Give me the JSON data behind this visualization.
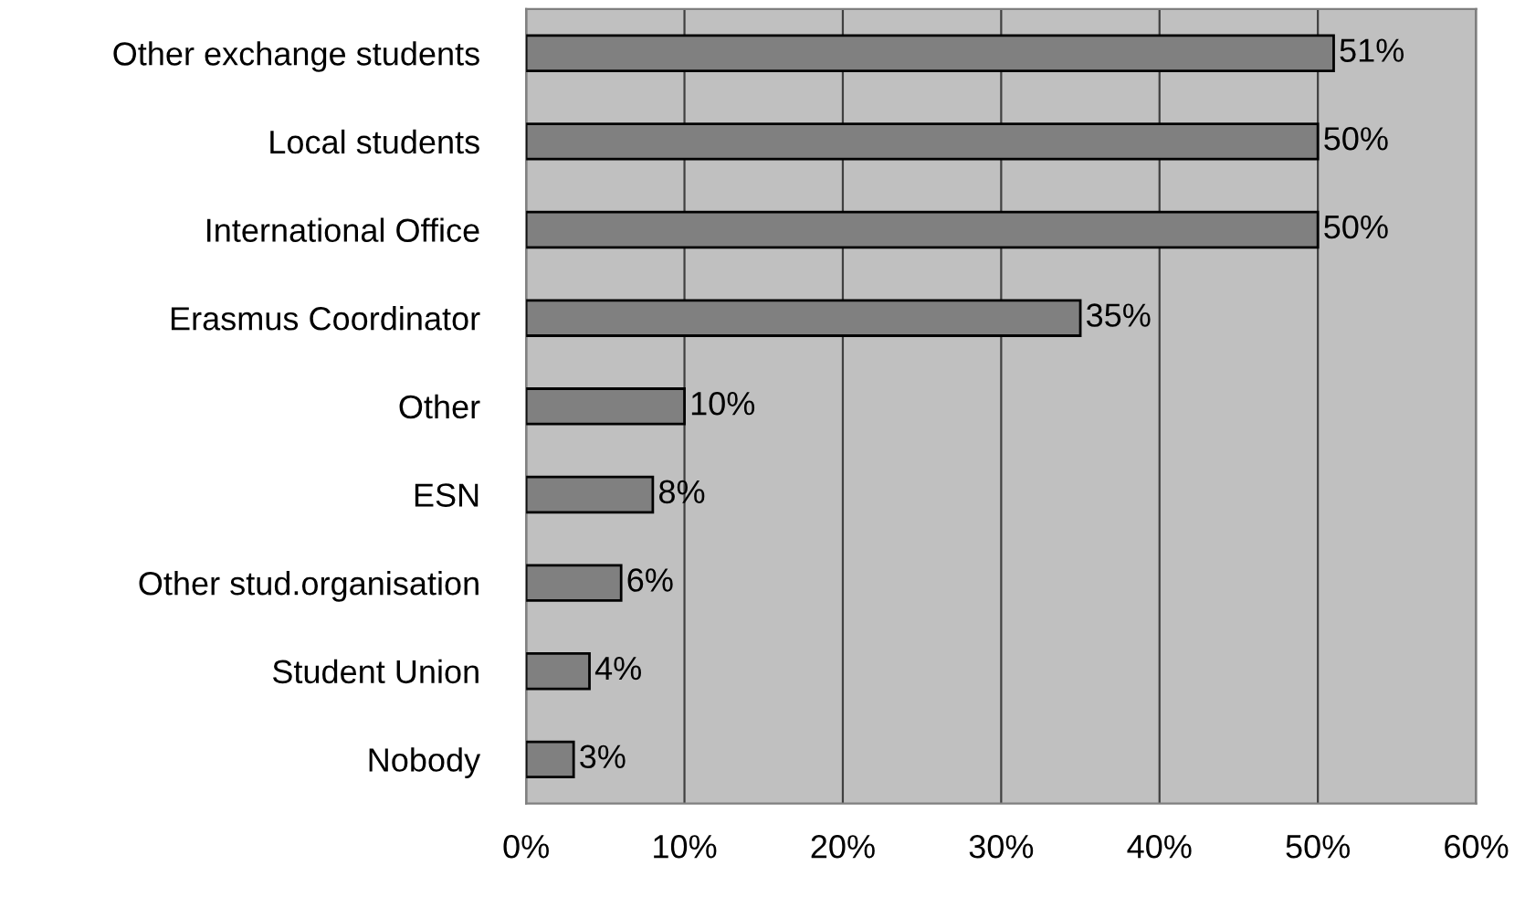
{
  "chart_data": {
    "type": "bar",
    "orientation": "horizontal",
    "categories": [
      "Other exchange students",
      "Local students",
      "International Office",
      "Erasmus Coordinator",
      "Other",
      "ESN",
      "Other stud.organisation",
      "Student Union",
      "Nobody"
    ],
    "values": [
      51,
      50,
      50,
      35,
      10,
      8,
      6,
      4,
      3
    ],
    "value_labels": [
      "51%",
      "50%",
      "50%",
      "35%",
      "10%",
      "8%",
      "6%",
      "4%",
      "3%"
    ],
    "color": "#808080",
    "xlim": [
      0,
      60
    ],
    "xticks": [
      {
        "value": 0,
        "label": "0%"
      },
      {
        "value": 10,
        "label": "10%"
      },
      {
        "value": 20,
        "label": "20%"
      },
      {
        "value": 30,
        "label": "30%"
      },
      {
        "value": 40,
        "label": "40%"
      },
      {
        "value": 50,
        "label": "50%"
      },
      {
        "value": 60,
        "label": "60%"
      }
    ],
    "grid": "x",
    "legend": false
  }
}
